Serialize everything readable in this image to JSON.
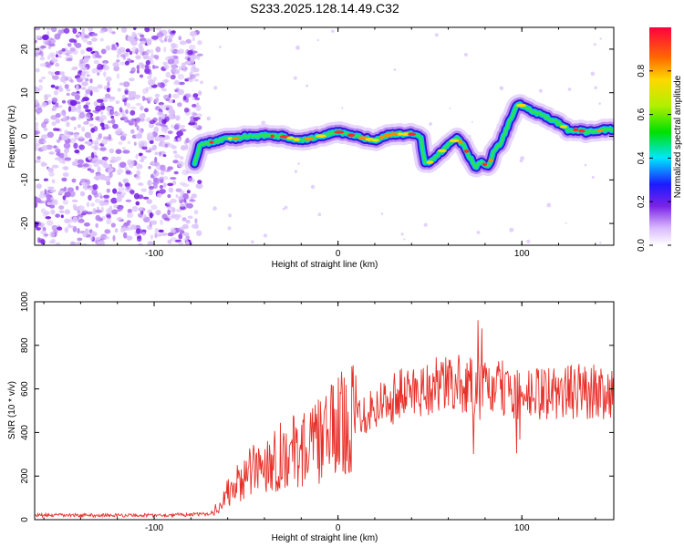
{
  "title": "S233.2025.128.14.49.C32",
  "colors": {
    "snr_line": "#e8302a",
    "noise": "#7a22e6",
    "frame": "#000000"
  },
  "chart_data": [
    {
      "type": "heatmap",
      "xlabel": "Height of straight line (km)",
      "ylabel": "Frequency (Hz)",
      "xlim": [
        -165,
        150
      ],
      "ylim": [
        -25,
        25
      ],
      "x_ticks": [
        -100,
        0,
        100
      ],
      "y_ticks": [
        -20,
        -10,
        0,
        10,
        20
      ],
      "colorbar": {
        "label": "Normalized spectral amplitude",
        "range": [
          0,
          1
        ],
        "ticks": [
          0.0,
          0.2,
          0.4,
          0.6,
          0.8
        ]
      },
      "noise_region_x": [
        -165,
        -75
      ],
      "ridge": {
        "x": [
          -78,
          -75,
          -70,
          -65,
          -60,
          -55,
          -50,
          -45,
          -40,
          -35,
          -30,
          -25,
          -20,
          -15,
          -10,
          -5,
          0,
          5,
          10,
          15,
          20,
          25,
          30,
          35,
          40,
          45,
          47,
          50,
          55,
          60,
          65,
          68,
          72,
          75,
          78,
          82,
          85,
          88,
          92,
          95,
          98,
          100,
          105,
          110,
          115,
          120,
          125,
          130,
          135,
          140,
          145,
          150
        ],
        "y": [
          -6,
          -2,
          -1.5,
          -1,
          -0.5,
          -0.5,
          0,
          0,
          0.2,
          0,
          0,
          -0.5,
          -1,
          -0.5,
          0,
          0.5,
          1,
          0.5,
          0,
          -0.5,
          -1,
          0,
          0.5,
          0.5,
          0.5,
          0,
          -6,
          -6,
          -4,
          -2,
          -0.5,
          -2,
          -5,
          -7,
          -6,
          -7,
          -3,
          -2,
          2,
          5,
          7.5,
          7,
          6,
          5,
          4,
          3,
          1.5,
          1.5,
          1,
          1,
          1.5,
          1.5
        ]
      }
    },
    {
      "type": "line",
      "xlabel": "Height of straight line (km)",
      "ylabel": "SNR (10 * v/v)",
      "xlim": [
        -165,
        150
      ],
      "ylim": [
        0,
        1000
      ],
      "x_ticks": [
        -100,
        0,
        100
      ],
      "y_ticks": [
        0,
        200,
        400,
        600,
        800,
        1000
      ],
      "envelope": {
        "x": [
          -165,
          -100,
          -70,
          -65,
          -60,
          -50,
          -40,
          -30,
          -20,
          -10,
          0,
          10,
          20,
          30,
          40,
          50,
          60,
          70,
          74,
          76,
          78,
          80,
          90,
          100,
          110,
          120,
          130,
          140,
          150
        ],
        "y": [
          20,
          20,
          25,
          60,
          120,
          200,
          260,
          300,
          320,
          360,
          430,
          480,
          520,
          560,
          590,
          610,
          620,
          620,
          600,
          560,
          600,
          600,
          600,
          560,
          580,
          580,
          590,
          590,
          590
        ]
      }
    }
  ]
}
